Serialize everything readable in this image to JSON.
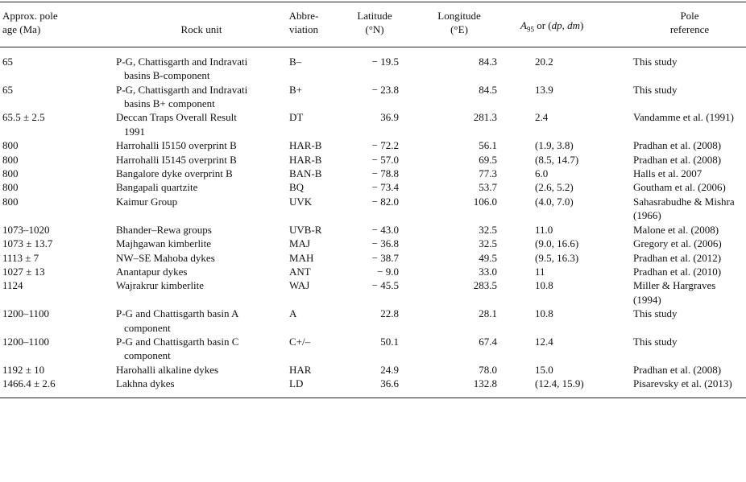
{
  "table": {
    "headers": {
      "age": [
        "Approx. pole",
        "age (Ma)"
      ],
      "rock": [
        "Rock unit"
      ],
      "abbr": [
        "Abbre-",
        "viation"
      ],
      "lat": [
        "Latitude",
        "(°N)"
      ],
      "lon": [
        "Longitude",
        "(°E)"
      ],
      "a95": [
        "A",
        "95",
        " or (",
        "dp",
        ", ",
        "dm",
        ")"
      ],
      "ref": [
        "Pole",
        "reference"
      ]
    },
    "rows": [
      [
        "65",
        "P-G, Chattisgarth and Indravati basins B-component",
        "B–",
        "− 19.5",
        "84.3",
        "20.2",
        "This study"
      ],
      [
        "65",
        "P-G, Chattisgarth and Indravati basins B+ component",
        "B+",
        "− 23.8",
        "84.5",
        "13.9",
        "This study"
      ],
      [
        "65.5 ± 2.5",
        "Deccan Traps Overall Result 1991",
        "DT",
        "36.9",
        "281.3",
        "2.4",
        "Vandamme et al. (1991)"
      ],
      [
        "800",
        "Harrohalli I5150 overprint B",
        "HAR-B",
        "− 72.2",
        "56.1",
        "(1.9, 3.8)",
        "Pradhan et al. (2008)"
      ],
      [
        "800",
        "Harrohalli I5145 overprint B",
        "HAR-B",
        "− 57.0",
        "69.5",
        "(8.5, 14.7)",
        "Pradhan et al. (2008)"
      ],
      [
        "800",
        "Bangalore dyke overprint B",
        "BAN-B",
        "− 78.8",
        "77.3",
        "6.0",
        "Halls et al. 2007"
      ],
      [
        "800",
        "Bangapali quartzite",
        "BQ",
        "− 73.4",
        "53.7",
        "(2.6, 5.2)",
        "Goutham et al. (2006)"
      ],
      [
        "800",
        "Kaimur Group",
        "UVK",
        "− 82.0",
        "106.0",
        "(4.0, 7.0)",
        "Sahasrabudhe & Mishra (1966)"
      ],
      [
        "1073–1020",
        "Bhander–Rewa groups",
        "UVB-R",
        "− 43.0",
        "32.5",
        "11.0",
        "Malone et al. (2008)"
      ],
      [
        "1073 ± 13.7",
        "Majhgawan kimberlite",
        "MAJ",
        "− 36.8",
        "32.5",
        "(9.0, 16.6)",
        "Gregory et al. (2006)"
      ],
      [
        "1113 ± 7",
        "NW–SE Mahoba dykes",
        "MAH",
        "− 38.7",
        "49.5",
        "(9.5, 16.3)",
        "Pradhan et al. (2012)"
      ],
      [
        "1027 ± 13",
        "Anantapur dykes",
        "ANT",
        "− 9.0",
        "33.0",
        "11",
        "Pradhan et al. (2010)"
      ],
      [
        "1124",
        "Wajrakrur kimberlite",
        "WAJ",
        "− 45.5",
        "283.5",
        "10.8",
        "Miller & Hargraves (1994)"
      ],
      [
        "1200–1100",
        "P-G and Chattisgarth basin A component",
        "A",
        "22.8",
        "28.1",
        "10.8",
        "This study"
      ],
      [
        "1200–1100",
        "P-G and Chattisgarth basin C component",
        "C+/–",
        "50.1",
        "67.4",
        "12.4",
        "This study"
      ],
      [
        "1192 ± 10",
        "Harohalli alkaline dykes",
        "HAR",
        "24.9",
        "78.0",
        "15.0",
        "Pradhan et al. (2008)"
      ],
      [
        "1466.4 ± 2.6",
        "Lakhna dykes",
        "LD",
        "36.6",
        "132.8",
        "(12.4, 15.9)",
        "Pisarevsky et al. (2013)"
      ]
    ]
  }
}
